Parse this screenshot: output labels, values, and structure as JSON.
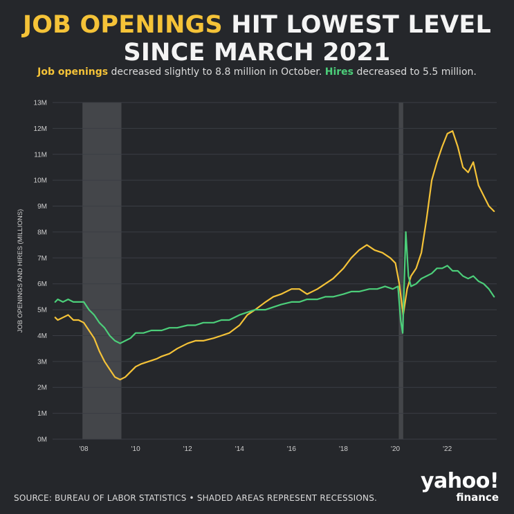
{
  "title": {
    "highlight": "JOB OPENINGS",
    "rest_line1": "HIT LOWEST LEVEL",
    "line2": "SINCE MARCH 2021"
  },
  "subtitle": {
    "openings_word": "Job openings",
    "mid": "decreased slightly to 8.8 million in October.",
    "hires_word": "Hires",
    "end": "decreased to 5.5 million."
  },
  "footer": "SOURCE: BUREAU OF LABOR STATISTICS • SHADED AREAS REPRESENT RECESSIONS.",
  "logo": {
    "line1": "yahoo!",
    "line2": "finance"
  },
  "colors": {
    "openings": "#f5c338",
    "hires": "#4ccf7a",
    "background": "#25272b",
    "grid": "#3b3e44",
    "recession": "#4a4c50"
  },
  "chart_data": {
    "type": "line",
    "ylabel": "JOB OPENINGS AND HIRES (MILLIONS)",
    "ylim": [
      0,
      13
    ],
    "xlim": [
      2006.8,
      2023.9
    ],
    "y_ticks": [
      {
        "value": 0,
        "label": "0M"
      },
      {
        "value": 1,
        "label": "1M"
      },
      {
        "value": 2,
        "label": "2M"
      },
      {
        "value": 3,
        "label": "3M"
      },
      {
        "value": 4,
        "label": "4M"
      },
      {
        "value": 5,
        "label": "5M"
      },
      {
        "value": 6,
        "label": "6M"
      },
      {
        "value": 7,
        "label": "7M"
      },
      {
        "value": 8,
        "label": "8M"
      },
      {
        "value": 9,
        "label": "9M"
      },
      {
        "value": 10,
        "label": "10M"
      },
      {
        "value": 11,
        "label": "11M"
      },
      {
        "value": 12,
        "label": "12M"
      },
      {
        "value": 13,
        "label": "13M"
      }
    ],
    "x_ticks": [
      {
        "value": 2008,
        "label": "'08"
      },
      {
        "value": 2010,
        "label": "'10"
      },
      {
        "value": 2012,
        "label": "'12"
      },
      {
        "value": 2014,
        "label": "'14"
      },
      {
        "value": 2016,
        "label": "'16"
      },
      {
        "value": 2018,
        "label": "'18"
      },
      {
        "value": 2020,
        "label": "'20"
      },
      {
        "value": 2022,
        "label": "'22"
      }
    ],
    "grid": true,
    "legend": "none",
    "recessions": [
      {
        "start": 2007.95,
        "end": 2009.45
      },
      {
        "start": 2020.13,
        "end": 2020.3
      }
    ],
    "series": [
      {
        "name": "Job openings",
        "color_key": "openings",
        "x": [
          2006.9,
          2007.0,
          2007.2,
          2007.4,
          2007.6,
          2007.8,
          2008.0,
          2008.2,
          2008.4,
          2008.6,
          2008.8,
          2009.0,
          2009.2,
          2009.4,
          2009.6,
          2009.8,
          2010.0,
          2010.2,
          2010.5,
          2010.8,
          2011.0,
          2011.3,
          2011.6,
          2012.0,
          2012.3,
          2012.6,
          2013.0,
          2013.3,
          2013.6,
          2014.0,
          2014.3,
          2014.6,
          2015.0,
          2015.3,
          2015.6,
          2016.0,
          2016.3,
          2016.6,
          2017.0,
          2017.3,
          2017.6,
          2018.0,
          2018.3,
          2018.6,
          2018.9,
          2019.2,
          2019.5,
          2019.8,
          2020.0,
          2020.15,
          2020.3,
          2020.45,
          2020.6,
          2020.8,
          2021.0,
          2021.2,
          2021.4,
          2021.6,
          2021.8,
          2022.0,
          2022.2,
          2022.4,
          2022.6,
          2022.8,
          2023.0,
          2023.2,
          2023.4,
          2023.6,
          2023.8
        ],
        "values": [
          4.7,
          4.6,
          4.7,
          4.8,
          4.6,
          4.6,
          4.5,
          4.2,
          3.9,
          3.4,
          3.0,
          2.7,
          2.4,
          2.3,
          2.4,
          2.6,
          2.8,
          2.9,
          3.0,
          3.1,
          3.2,
          3.3,
          3.5,
          3.7,
          3.8,
          3.8,
          3.9,
          4.0,
          4.1,
          4.4,
          4.8,
          5.0,
          5.3,
          5.5,
          5.6,
          5.8,
          5.8,
          5.6,
          5.8,
          6.0,
          6.2,
          6.6,
          7.0,
          7.3,
          7.5,
          7.3,
          7.2,
          7.0,
          6.8,
          6.0,
          4.8,
          5.8,
          6.3,
          6.6,
          7.2,
          8.5,
          10.0,
          10.7,
          11.3,
          11.8,
          11.9,
          11.3,
          10.5,
          10.3,
          10.7,
          9.8,
          9.4,
          9.0,
          8.8
        ]
      },
      {
        "name": "Hires",
        "color_key": "hires",
        "x": [
          2006.9,
          2007.0,
          2007.2,
          2007.4,
          2007.6,
          2007.8,
          2008.0,
          2008.2,
          2008.4,
          2008.6,
          2008.8,
          2009.0,
          2009.2,
          2009.4,
          2009.6,
          2009.8,
          2010.0,
          2010.3,
          2010.6,
          2011.0,
          2011.3,
          2011.6,
          2012.0,
          2012.3,
          2012.6,
          2013.0,
          2013.3,
          2013.6,
          2014.0,
          2014.3,
          2014.6,
          2015.0,
          2015.3,
          2015.6,
          2016.0,
          2016.3,
          2016.6,
          2017.0,
          2017.3,
          2017.6,
          2018.0,
          2018.3,
          2018.6,
          2019.0,
          2019.3,
          2019.6,
          2019.9,
          2020.1,
          2020.2,
          2020.28,
          2020.4,
          2020.5,
          2020.6,
          2020.8,
          2021.0,
          2021.2,
          2021.4,
          2021.6,
          2021.8,
          2022.0,
          2022.2,
          2022.4,
          2022.6,
          2022.8,
          2023.0,
          2023.2,
          2023.4,
          2023.6,
          2023.8
        ],
        "values": [
          5.3,
          5.4,
          5.3,
          5.4,
          5.3,
          5.3,
          5.3,
          5.0,
          4.8,
          4.5,
          4.3,
          4.0,
          3.8,
          3.7,
          3.8,
          3.9,
          4.1,
          4.1,
          4.2,
          4.2,
          4.3,
          4.3,
          4.4,
          4.4,
          4.5,
          4.5,
          4.6,
          4.6,
          4.8,
          4.9,
          5.0,
          5.0,
          5.1,
          5.2,
          5.3,
          5.3,
          5.4,
          5.4,
          5.5,
          5.5,
          5.6,
          5.7,
          5.7,
          5.8,
          5.8,
          5.9,
          5.8,
          5.9,
          4.6,
          4.1,
          8.0,
          6.3,
          5.9,
          6.0,
          6.2,
          6.3,
          6.4,
          6.6,
          6.6,
          6.7,
          6.5,
          6.5,
          6.3,
          6.2,
          6.3,
          6.1,
          6.0,
          5.8,
          5.5
        ]
      }
    ]
  }
}
